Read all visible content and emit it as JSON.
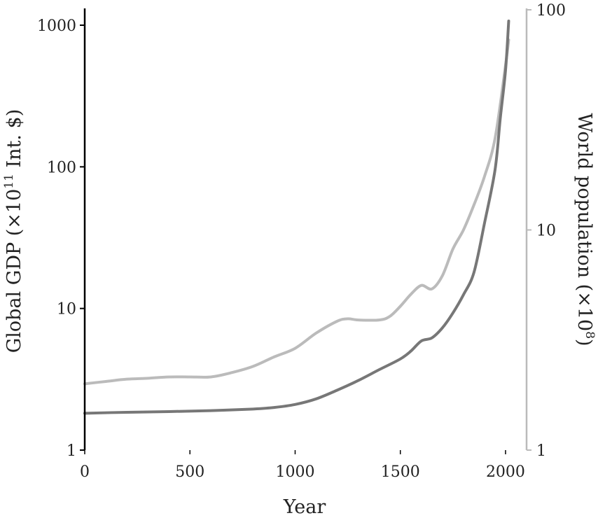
{
  "chart_data": {
    "type": "line",
    "xlabel": "Year",
    "ylabel_left": "Global GDP (×10",
    "ylabel_left_sup": "11",
    "ylabel_left_suffix": " Int. $)",
    "ylabel_right": "World population (×10",
    "ylabel_right_sup": "8",
    "ylabel_right_suffix": ")",
    "xlim": [
      0,
      2100
    ],
    "xticks": [
      "0",
      "500",
      "1000",
      "1500",
      "2000"
    ],
    "xtick_values": [
      0,
      500,
      1000,
      1500,
      2000
    ],
    "ylim_left": [
      1,
      1000
    ],
    "yticks_left": [
      "1",
      "10",
      "100",
      "1000"
    ],
    "ytick_left_values": [
      1,
      10,
      100,
      1000
    ],
    "ylim_right": [
      1,
      100
    ],
    "yticks_right": [
      "1",
      "10",
      "100"
    ],
    "ytick_right_values": [
      1,
      10,
      100
    ],
    "y_scale": "log",
    "grid": false,
    "colors": {
      "gdp_series": "#777777",
      "population_series": "#bbbbbb",
      "left_axis": "#000000",
      "right_axis": "#bbbbbb"
    },
    "series": [
      {
        "axis": "left",
        "color": "#777777",
        "x": [
          0,
          200,
          400,
          600,
          800,
          900,
          1000,
          1100,
          1200,
          1300,
          1400,
          1500,
          1550,
          1600,
          1650,
          1700,
          1750,
          1800,
          1850,
          1900,
          1950,
          1975,
          2000,
          2015
        ],
        "values": [
          1.82,
          1.85,
          1.87,
          1.9,
          1.95,
          2.0,
          2.1,
          2.3,
          2.65,
          3.1,
          3.7,
          4.4,
          5.0,
          5.9,
          6.2,
          7.3,
          9.3,
          12.5,
          18,
          40,
          95,
          220,
          480,
          1070
        ]
      },
      {
        "axis": "right",
        "color": "#bbbbbb",
        "x": [
          0,
          100,
          200,
          300,
          400,
          500,
          600,
          700,
          800,
          900,
          1000,
          1100,
          1200,
          1250,
          1300,
          1400,
          1450,
          1500,
          1550,
          1600,
          1650,
          1700,
          1750,
          1800,
          1850,
          1900,
          1950,
          2000,
          2015
        ],
        "values": [
          2.0,
          2.05,
          2.1,
          2.12,
          2.15,
          2.15,
          2.15,
          2.25,
          2.4,
          2.65,
          2.9,
          3.4,
          3.85,
          3.95,
          3.9,
          3.9,
          4.05,
          4.5,
          5.1,
          5.6,
          5.4,
          6.2,
          8.2,
          10,
          13,
          17.5,
          26,
          56,
          73
        ]
      }
    ]
  }
}
